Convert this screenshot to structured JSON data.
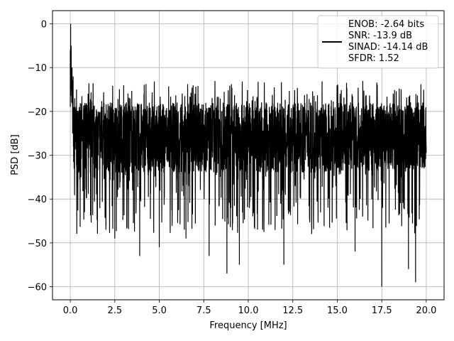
{
  "chart_data": {
    "type": "line",
    "title": "",
    "xlabel": "Frequency [MHz]",
    "ylabel": "PSD [dB]",
    "xlim": [
      -1.0,
      21.0
    ],
    "ylim": [
      -63.0,
      3.0
    ],
    "xticks": [
      0.0,
      2.5,
      5.0,
      7.5,
      10.0,
      12.5,
      15.0,
      17.5,
      20.0
    ],
    "xtick_labels": [
      "0.0",
      "2.5",
      "5.0",
      "7.5",
      "10.0",
      "12.5",
      "15.0",
      "17.5",
      "20.0"
    ],
    "yticks": [
      0,
      -10,
      -20,
      -30,
      -40,
      -50,
      -60
    ],
    "ytick_labels": [
      "0",
      "−10",
      "−20",
      "−30",
      "−40",
      "−50",
      "−60"
    ],
    "grid": true,
    "legend_position": "top-right",
    "legend_lines": [
      "ENOB: -2.64 bits",
      "SNR: -13.9 dB",
      "SINAD: -14.14 dB",
      "SFDR: 1.52"
    ],
    "series": [
      {
        "color": "#000000",
        "noise_floor_db": -26,
        "noise_peak_db": -13,
        "noise_min_db": -60,
        "points": [
          [
            0.0,
            -6
          ],
          [
            0.02,
            0
          ],
          [
            0.05,
            -5
          ],
          [
            0.08,
            -18
          ],
          [
            0.1,
            -10
          ],
          [
            0.13,
            -25
          ],
          [
            0.16,
            -12
          ],
          [
            0.2,
            -22
          ],
          [
            0.25,
            -17
          ],
          [
            0.3,
            -27
          ],
          [
            0.35,
            -15
          ],
          [
            0.4,
            -37
          ],
          [
            0.5,
            -19
          ],
          [
            0.6,
            -35
          ],
          [
            0.7,
            -22
          ],
          [
            0.8,
            -43
          ],
          [
            1.0,
            -16
          ],
          [
            1.5,
            -32
          ],
          [
            2.0,
            -47
          ],
          [
            2.5,
            -49
          ],
          [
            3.0,
            -14
          ],
          [
            3.5,
            -38
          ],
          [
            3.9,
            -53
          ],
          [
            4.5,
            -20
          ],
          [
            5.0,
            -51
          ],
          [
            6.0,
            -18
          ],
          [
            6.5,
            -49
          ],
          [
            7.0,
            -16
          ],
          [
            7.8,
            -53
          ],
          [
            8.5,
            -20
          ],
          [
            8.8,
            -57
          ],
          [
            9.5,
            -55
          ],
          [
            10.5,
            -17
          ],
          [
            11.5,
            -19
          ],
          [
            12.0,
            -55
          ],
          [
            13.5,
            -18
          ],
          [
            15.0,
            -17
          ],
          [
            16.0,
            -52
          ],
          [
            17.5,
            -60
          ],
          [
            18.5,
            -20
          ],
          [
            19.0,
            -56
          ],
          [
            19.4,
            -59
          ],
          [
            19.8,
            -18
          ],
          [
            20.0,
            -28
          ]
        ]
      }
    ]
  }
}
